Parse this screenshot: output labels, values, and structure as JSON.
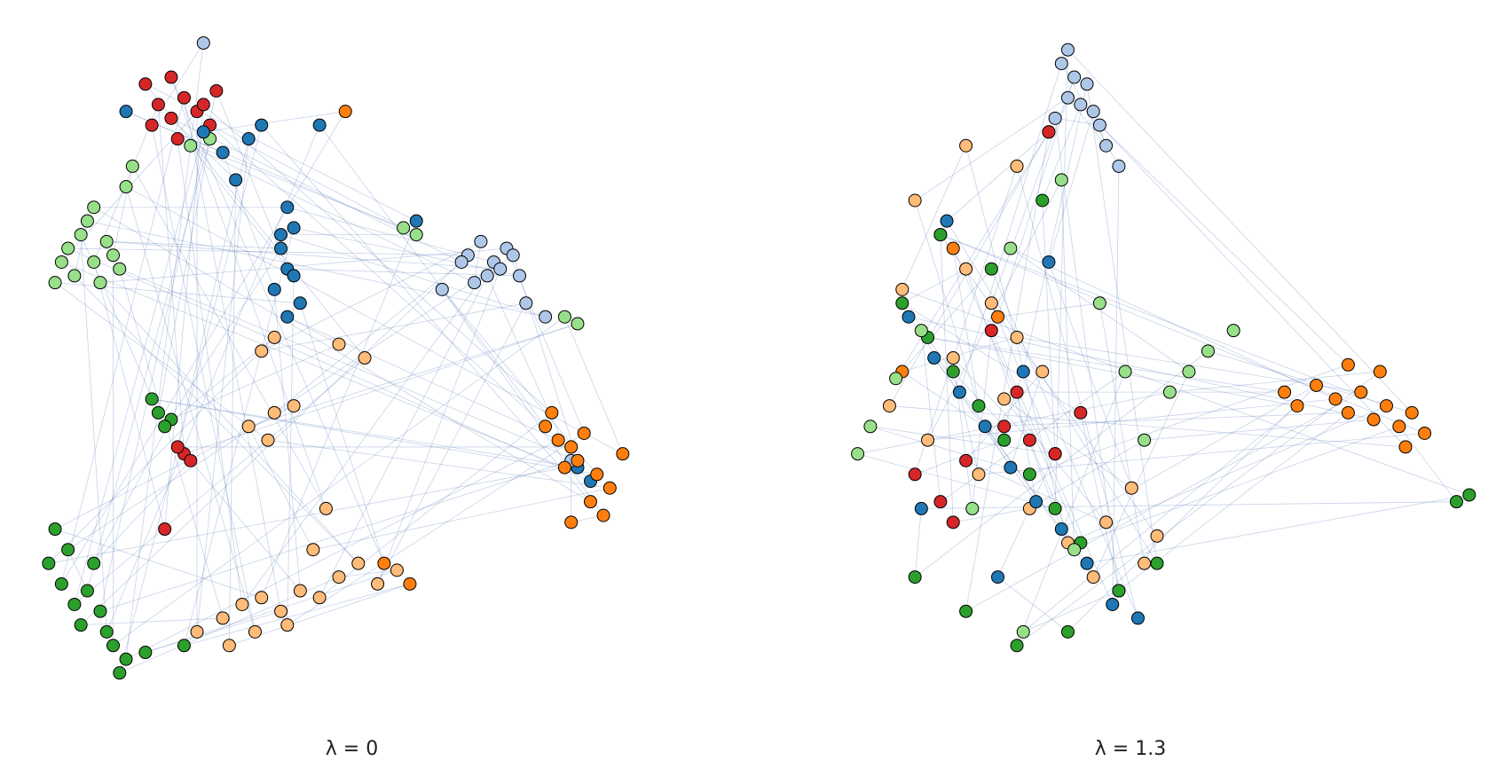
{
  "chart_data": [
    {
      "type": "scatter",
      "title": "λ = 0",
      "xlim": [
        0,
        100
      ],
      "ylim": [
        0,
        100
      ],
      "series": [
        {
          "color": "#d62728",
          "x": [
            20,
            22,
            24,
            26,
            28,
            19,
            23,
            27,
            18,
            29,
            22,
            24,
            23,
            25,
            21
          ],
          "values": [
            89,
            87,
            90,
            88,
            86,
            86,
            84,
            89,
            92,
            91,
            93,
            38,
            39,
            37,
            27
          ]
        },
        {
          "color": "#98df8a",
          "x": [
            6,
            8,
            10,
            12,
            14,
            7,
            9,
            11,
            13,
            5,
            4,
            10,
            15,
            16,
            25,
            28,
            58,
            60,
            83,
            85
          ],
          "values": [
            68,
            70,
            66,
            69,
            65,
            64,
            72,
            63,
            67,
            66,
            63,
            74,
            77,
            80,
            83,
            84,
            71,
            70,
            58,
            57
          ]
        },
        {
          "color": "#1f77b4",
          "x": [
            40,
            41,
            39,
            40,
            38,
            42,
            40,
            41,
            39,
            36,
            34,
            30,
            27,
            32,
            15,
            45,
            60,
            87,
            85
          ],
          "values": [
            74,
            71,
            68,
            65,
            62,
            60,
            58,
            64,
            70,
            86,
            84,
            82,
            85,
            78,
            88,
            86,
            72,
            34,
            36
          ]
        },
        {
          "color": "#aec7e8",
          "x": [
            68,
            70,
            72,
            74,
            71,
            73,
            69,
            75,
            67,
            76,
            64,
            77,
            80,
            84,
            27
          ],
          "values": [
            67,
            69,
            66,
            68,
            64,
            65,
            63,
            67,
            66,
            64,
            62,
            60,
            58,
            37,
            98
          ]
        },
        {
          "color": "#ff7f0e",
          "x": [
            80,
            82,
            84,
            86,
            83,
            85,
            88,
            81,
            87,
            84,
            90,
            92,
            89,
            59,
            55,
            49
          ],
          "values": [
            42,
            40,
            39,
            41,
            36,
            37,
            35,
            44,
            31,
            28,
            33,
            38,
            29,
            19,
            22,
            88
          ]
        },
        {
          "color": "#2ca02c",
          "x": [
            5,
            7,
            9,
            11,
            8,
            10,
            12,
            6,
            4,
            13,
            15,
            18,
            20,
            19,
            22,
            21,
            24,
            3,
            14
          ],
          "values": [
            19,
            16,
            18,
            15,
            13,
            22,
            12,
            24,
            27,
            10,
            8,
            9,
            44,
            46,
            43,
            42,
            10,
            22,
            6
          ]
        },
        {
          "color": "#ffbb78",
          "x": [
            30,
            33,
            36,
            39,
            42,
            45,
            48,
            51,
            54,
            57,
            35,
            40,
            44,
            34,
            37,
            38,
            48,
            52,
            26,
            31,
            41,
            46,
            36,
            38
          ],
          "values": [
            14,
            16,
            17,
            15,
            18,
            17,
            20,
            22,
            19,
            21,
            12,
            13,
            24,
            42,
            40,
            44,
            54,
            52,
            12,
            10,
            45,
            30,
            53,
            55
          ]
        }
      ]
    },
    {
      "type": "scatter",
      "title": "λ = 1.3",
      "xlim": [
        0,
        100
      ],
      "ylim": [
        0,
        100
      ],
      "series": [
        {
          "color": "#aec7e8",
          "x": [
            35,
            37,
            39,
            36,
            38,
            40,
            34,
            41,
            33,
            42,
            36,
            44
          ],
          "values": [
            95,
            93,
            92,
            90,
            89,
            88,
            87,
            86,
            85,
            83,
            97,
            80
          ]
        },
        {
          "color": "#ffbb78",
          "x": [
            12,
            16,
            20,
            24,
            28,
            32,
            8,
            14,
            22,
            30,
            36,
            40,
            44,
            48,
            10,
            18,
            26,
            34,
            42,
            46,
            50,
            28,
            20
          ],
          "values": [
            75,
            70,
            65,
            60,
            55,
            50,
            45,
            40,
            35,
            30,
            25,
            20,
            18,
            22,
            62,
            52,
            46,
            38,
            28,
            33,
            26,
            80,
            83
          ]
        },
        {
          "color": "#ff7f0e",
          "x": [
            75,
            78,
            80,
            82,
            84,
            86,
            88,
            90,
            92,
            80,
            85,
            89,
            18,
            25,
            10,
            70,
            72
          ],
          "values": [
            48,
            46,
            44,
            47,
            43,
            45,
            42,
            44,
            41,
            51,
            50,
            39,
            68,
            58,
            50,
            47,
            45
          ]
        },
        {
          "color": "#2ca02c",
          "x": [
            10,
            14,
            18,
            22,
            26,
            30,
            34,
            38,
            12,
            20,
            28,
            36,
            44,
            16,
            24,
            32,
            97,
            99,
            50
          ],
          "values": [
            60,
            55,
            50,
            45,
            40,
            35,
            30,
            25,
            20,
            15,
            10,
            12,
            18,
            70,
            65,
            75,
            31,
            32,
            22
          ]
        },
        {
          "color": "#1f77b4",
          "x": [
            11,
            15,
            19,
            23,
            27,
            31,
            35,
            39,
            43,
            47,
            17,
            25,
            33,
            13,
            29
          ],
          "values": [
            58,
            52,
            47,
            42,
            36,
            31,
            27,
            22,
            16,
            14,
            72,
            20,
            66,
            30,
            50
          ]
        },
        {
          "color": "#98df8a",
          "x": [
            5,
            9,
            13,
            21,
            29,
            37,
            41,
            45,
            52,
            55,
            58,
            62,
            48,
            3,
            27,
            35
          ],
          "values": [
            42,
            49,
            56,
            30,
            12,
            24,
            60,
            50,
            47,
            50,
            53,
            56,
            40,
            38,
            68,
            78
          ]
        },
        {
          "color": "#d62728",
          "x": [
            12,
            16,
            20,
            26,
            30,
            34,
            38,
            24,
            18,
            28,
            33
          ],
          "values": [
            35,
            31,
            37,
            42,
            40,
            38,
            44,
            56,
            28,
            47,
            85
          ]
        }
      ]
    }
  ]
}
